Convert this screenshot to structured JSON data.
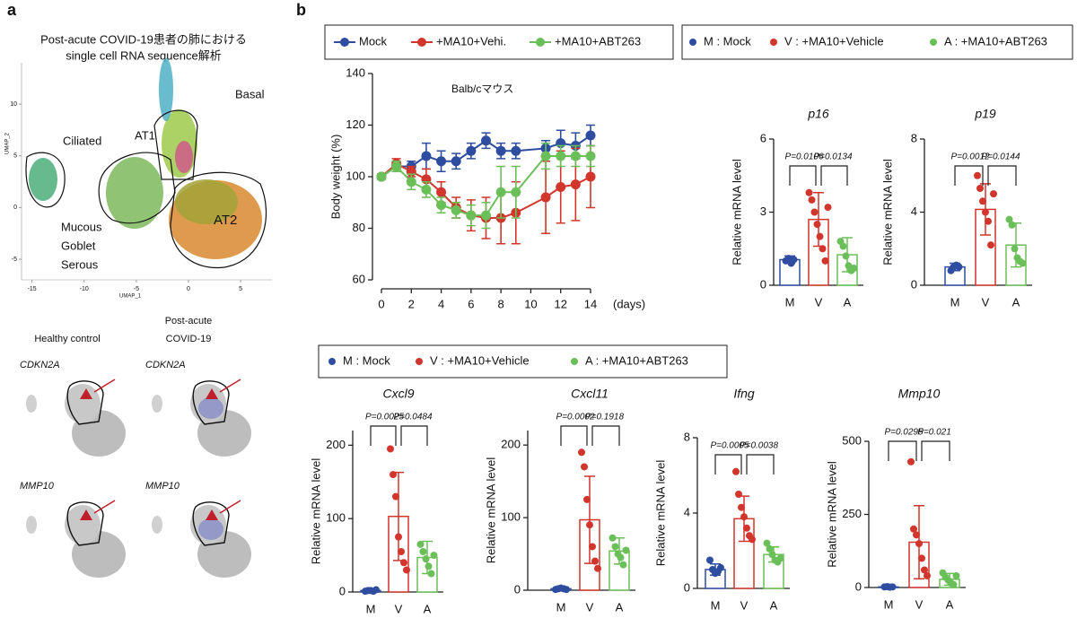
{
  "panel_labels": [
    "a",
    "b"
  ],
  "panel_a": {
    "group_labels": [
      [
        "Healthy control"
      ],
      [
        "Post-acute",
        "COVID-19"
      ]
    ],
    "genes": [
      "CDKN2A",
      "MMP10"
    ]
  },
  "chart_data": [
    {
      "type": "scatter",
      "title": [
        "Post-acute COVID-19患者の肺における",
        "single cell RNA sequence解析"
      ],
      "xlabel": "UMAP_1",
      "ylabel": "UMAP_2",
      "xlim": [
        -16,
        8
      ],
      "xticks": [
        -15,
        -10,
        -5,
        0,
        5
      ],
      "ylim": [
        -7,
        14
      ],
      "yticks": [
        -5,
        0,
        5,
        10
      ],
      "annotations": [
        "Ciliated",
        "AT1",
        "Basal",
        "Mucous",
        "Goblet",
        "Serous",
        "AT2"
      ]
    },
    {
      "type": "line",
      "annotation": "Balb/cマウス",
      "ylabel": "Body weight (%)",
      "xlabel": "(days)",
      "x": [
        0,
        1,
        2,
        3,
        4,
        5,
        6,
        7,
        8,
        9,
        11,
        12,
        13,
        14
      ],
      "xlim": [
        0,
        14
      ],
      "xticks": [
        0,
        2,
        4,
        6,
        8,
        10,
        12,
        14
      ],
      "ylim": [
        60,
        140
      ],
      "yticks": [
        60,
        80,
        100,
        120,
        140
      ],
      "series": [
        {
          "name": "Mock",
          "color": "#2f4da0",
          "values": [
            100,
            104,
            104,
            108,
            106,
            106,
            110,
            114,
            110,
            110,
            111,
            113,
            112,
            116
          ],
          "errors": [
            1,
            2,
            2,
            5,
            4,
            3,
            3,
            3,
            3,
            3,
            3,
            5,
            5,
            4
          ]
        },
        {
          "name": "+MA10+Vehi.",
          "color": "#d1352b",
          "values": [
            100,
            105,
            102,
            99,
            94,
            88,
            85,
            84,
            84,
            86,
            92,
            96,
            97,
            100
          ],
          "errors": [
            1,
            2,
            2,
            4,
            4,
            4,
            6,
            8,
            10,
            12,
            14,
            14,
            14,
            12
          ]
        },
        {
          "name": "+MA10+ABT263",
          "color": "#6bbf59",
          "values": [
            100,
            104,
            98,
            95,
            89,
            87,
            85,
            85,
            94,
            94,
            108,
            108,
            108,
            108
          ],
          "errors": [
            1,
            2,
            3,
            3,
            3,
            3,
            4,
            5,
            10,
            10,
            5,
            4,
            4,
            4
          ]
        }
      ]
    },
    {
      "type": "bar",
      "title": "p16",
      "ylabel": "Relative mRNA level",
      "legend_labels": [
        "M : Mock",
        "V : +MA10+Vehicle",
        "A : +MA10+ABT263"
      ],
      "categories": [
        "M",
        "V",
        "A"
      ],
      "colors": [
        "#2f4da0",
        "#d1352b",
        "#6bbf59"
      ],
      "values": [
        1.05,
        2.7,
        1.25
      ],
      "errors": [
        0.15,
        1.1,
        0.7
      ],
      "points": [
        [
          1.0,
          1.1,
          0.9,
          1.05
        ],
        [
          3.8,
          3.5,
          3.0,
          2.5,
          2.0,
          1.5,
          1.0,
          3.2
        ],
        [
          1.8,
          1.6,
          1.2,
          0.8,
          0.6,
          0.7
        ]
      ],
      "p_values": [
        "P=0.0106",
        "P=0.0134"
      ],
      "ylim": [
        0,
        6
      ],
      "yticks": [
        0,
        3,
        6
      ]
    },
    {
      "type": "bar",
      "title": "p19",
      "ylabel": "Relative mRNA level",
      "categories": [
        "M",
        "V",
        "A"
      ],
      "colors": [
        "#2f4da0",
        "#d1352b",
        "#6bbf59"
      ],
      "values": [
        1.0,
        4.15,
        2.2
      ],
      "errors": [
        0.2,
        1.4,
        1.2
      ],
      "points": [
        [
          0.8,
          1.0,
          1.1,
          1.0
        ],
        [
          6.0,
          5.3,
          4.6,
          4.0,
          3.5,
          2.2,
          5.0
        ],
        [
          3.6,
          3.3,
          2.0,
          1.5,
          1.3,
          1.2
        ]
      ],
      "p_values": [
        "P=0.0012",
        "P=0.0144"
      ],
      "ylim": [
        0,
        8
      ],
      "yticks": [
        0,
        4,
        8
      ]
    },
    {
      "type": "bar",
      "title": "Cxcl9",
      "ylabel": "Relative mRNA level",
      "legend_labels": [
        "M : Mock",
        "V : +MA10+Vehicle",
        "A : +MA10+ABT263"
      ],
      "categories": [
        "M",
        "V",
        "A"
      ],
      "colors": [
        "#2f4da0",
        "#d1352b",
        "#6bbf59"
      ],
      "values": [
        2,
        103,
        47
      ],
      "errors": [
        2,
        60,
        22
      ],
      "points": [
        [
          1,
          2,
          2,
          1,
          3
        ],
        [
          195,
          160,
          130,
          75,
          55,
          40,
          30
        ],
        [
          65,
          55,
          45,
          35,
          25,
          50
        ]
      ],
      "p_values": [
        "P=0.0025",
        "P=0.0484"
      ],
      "ylim": [
        0,
        220
      ],
      "yticks": [
        0,
        100,
        200
      ]
    },
    {
      "type": "bar",
      "title": "Cxcl11",
      "ylabel": "Relative mRNA level",
      "categories": [
        "M",
        "V",
        "A"
      ],
      "colors": [
        "#2f4da0",
        "#d1352b",
        "#6bbf59"
      ],
      "values": [
        2,
        97,
        54
      ],
      "errors": [
        2,
        60,
        18
      ],
      "points": [
        [
          1,
          2,
          3,
          2,
          1
        ],
        [
          190,
          170,
          125,
          90,
          60,
          40,
          30
        ],
        [
          72,
          60,
          50,
          45,
          35,
          55
        ]
      ],
      "p_values": [
        "P=0.0002",
        "P=0.1918"
      ],
      "ylim": [
        0,
        220
      ],
      "yticks": [
        0,
        100,
        200
      ]
    },
    {
      "type": "bar",
      "title": "Ifng",
      "ylabel": "Relative mRNA level",
      "categories": [
        "M",
        "V",
        "A"
      ],
      "colors": [
        "#2f4da0",
        "#d1352b",
        "#6bbf59"
      ],
      "values": [
        1.0,
        3.7,
        1.8
      ],
      "errors": [
        0.3,
        1.2,
        0.4
      ],
      "points": [
        [
          1.5,
          1.0,
          0.8,
          0.9,
          1.1
        ],
        [
          6.2,
          5.0,
          4.3,
          3.8,
          3.2,
          2.8,
          2.6
        ],
        [
          2.4,
          2.1,
          1.8,
          1.5,
          1.4,
          1.6
        ]
      ],
      "p_values": [
        "P=0.0005",
        "P=0.0038"
      ],
      "ylim": [
        0,
        8
      ],
      "yticks": [
        0,
        4,
        8
      ]
    },
    {
      "type": "bar",
      "title": "Mmp10",
      "ylabel": "Relative mRNA level",
      "categories": [
        "M",
        "V",
        "A"
      ],
      "colors": [
        "#2f4da0",
        "#d1352b",
        "#6bbf59"
      ],
      "values": [
        2,
        155,
        28
      ],
      "errors": [
        2,
        125,
        20
      ],
      "points": [
        [
          2,
          3,
          1,
          2
        ],
        [
          430,
          200,
          180,
          150,
          100,
          60,
          40
        ],
        [
          50,
          35,
          25,
          15,
          10,
          40
        ]
      ],
      "p_values": [
        "P=0.0295",
        "P=0.021"
      ],
      "ylim": [
        0,
        500
      ],
      "yticks": [
        0,
        250,
        500
      ]
    }
  ]
}
